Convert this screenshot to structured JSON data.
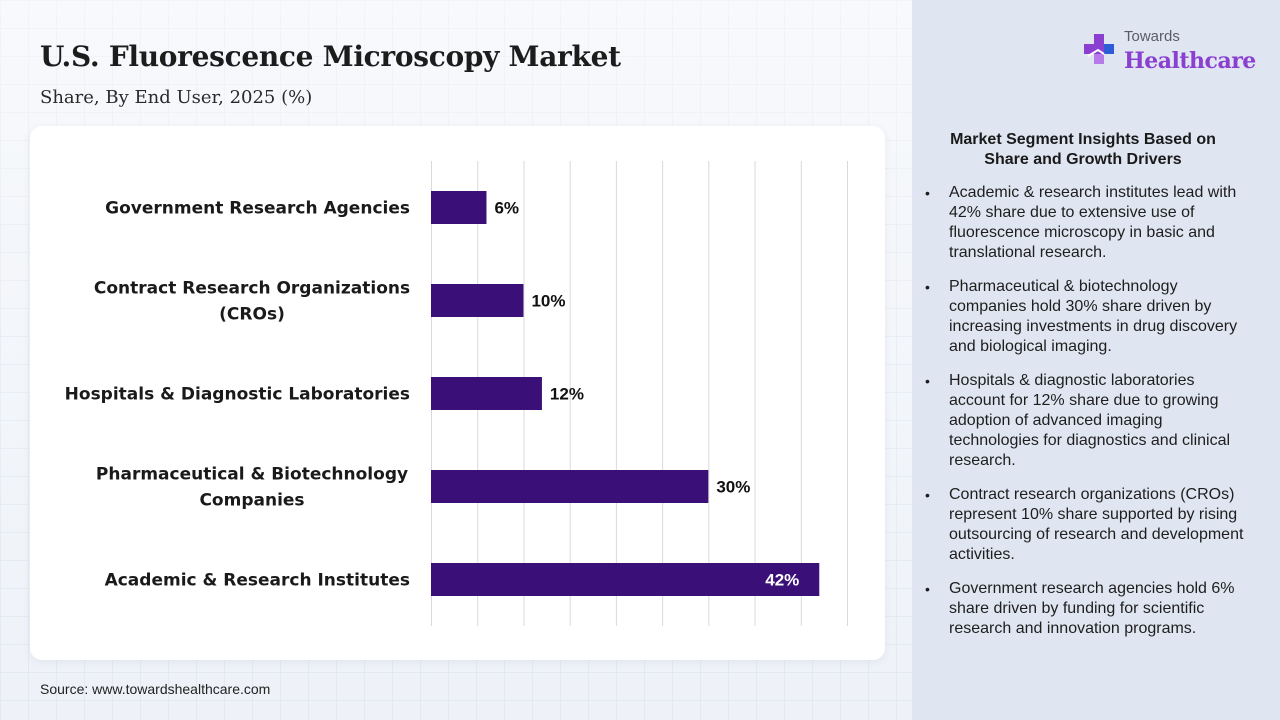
{
  "header": {
    "title": "U.S. Fluorescence Microscopy Market",
    "subtitle": "Share, By End User, 2025 (%)"
  },
  "logo": {
    "top_text": "Towards",
    "main_text": "Healthcare",
    "icon": "medical-cross-icon"
  },
  "colors": {
    "bar": "#3a1078",
    "logo_purple": "#8a3fd1",
    "logo_blue": "#2e5bd6"
  },
  "chart_data": {
    "type": "bar",
    "orientation": "horizontal",
    "title": "",
    "xlabel": "",
    "ylabel": "",
    "categories": [
      [
        "Government Research Agencies"
      ],
      [
        "Contract Research Organizations",
        "(CROs)"
      ],
      [
        "Hospitals & Diagnostic Laboratories"
      ],
      [
        "Pharmaceutical & Biotechnology",
        "Companies"
      ],
      [
        "Academic & Research Institutes"
      ]
    ],
    "values": [
      6,
      10,
      12,
      30,
      42
    ],
    "value_labels": [
      "6%",
      "10%",
      "12%",
      "30%",
      "42%"
    ],
    "xlim": [
      0,
      45
    ],
    "grid": true,
    "legend": "none"
  },
  "insights": {
    "title": "Market Segment Insights Based on Share and Growth Drivers",
    "items": [
      "Academic & research institutes lead with 42% share due to extensive use of fluorescence microscopy in basic and translational research.",
      "Pharmaceutical & biotechnology companies hold 30% share driven by increasing investments in drug discovery and biological imaging.",
      "Hospitals & diagnostic laboratories account for 12% share due to growing adoption of advanced imaging technologies for diagnostics and clinical research.",
      "Contract research organizations (CROs) represent 10% share supported by rising outsourcing of research and development activities.",
      "Government research agencies hold 6% share driven by funding for scientific research and innovation programs."
    ]
  },
  "footer": {
    "source": "Source: www.towardshealthcare.com"
  }
}
